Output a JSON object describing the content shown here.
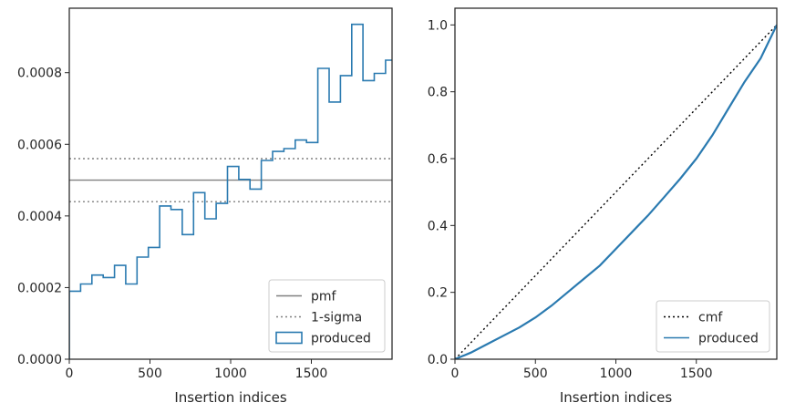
{
  "chart_data": [
    {
      "type": "line",
      "xlabel": "Insertion indices",
      "ylabel": "",
      "xlim": [
        0,
        2000
      ],
      "ylim": [
        0,
        0.00098
      ],
      "xticks": [
        "0",
        "500",
        "1000",
        "1500"
      ],
      "yticks": [
        "0.0000",
        "0.0002",
        "0.0004",
        "0.0006",
        "0.0008"
      ],
      "xtick_values": [
        0,
        500,
        1000,
        1500
      ],
      "ytick_values": [
        0,
        0.0002,
        0.0004,
        0.0006,
        0.0008
      ],
      "legend_position": "lower-right",
      "series": [
        {
          "name": "pmf",
          "style": "solid",
          "color": "#808080",
          "y": 0.0005
        },
        {
          "name": "1-sigma",
          "style": "dotted",
          "color": "#808080",
          "y": [
            0.00044,
            0.00056
          ]
        },
        {
          "name": "produced",
          "style": "step",
          "color": "#2a7ab0",
          "bin_edges": [
            0,
            70,
            140,
            210,
            280,
            350,
            420,
            490,
            560,
            630,
            700,
            770,
            840,
            910,
            980,
            1050,
            1120,
            1190,
            1260,
            1330,
            1400,
            1470,
            1540,
            1610,
            1680,
            1750,
            1820,
            1890,
            1960,
            2000
          ],
          "values": [
            0.00019,
            0.00021,
            0.000235,
            0.000228,
            0.000262,
            0.00021,
            0.000285,
            0.000312,
            0.000428,
            0.000418,
            0.000348,
            0.000465,
            0.000392,
            0.000435,
            0.000538,
            0.000502,
            0.000475,
            0.000555,
            0.00058,
            0.000588,
            0.000612,
            0.000605,
            0.000812,
            0.000718,
            0.000792,
            0.000935,
            0.000778,
            0.000798,
            0.000835
          ]
        }
      ]
    },
    {
      "type": "line",
      "xlabel": "Insertion indices",
      "ylabel": "",
      "xlim": [
        0,
        2000
      ],
      "ylim": [
        0,
        1.05
      ],
      "xticks": [
        "0",
        "500",
        "1000",
        "1500"
      ],
      "yticks": [
        "0.0",
        "0.2",
        "0.4",
        "0.6",
        "0.8",
        "1.0"
      ],
      "xtick_values": [
        0,
        500,
        1000,
        1500
      ],
      "ytick_values": [
        0,
        0.2,
        0.4,
        0.6,
        0.8,
        1.0
      ],
      "legend_position": "lower-right",
      "series": [
        {
          "name": "cmf",
          "style": "dotted",
          "color": "#000000",
          "x": [
            0,
            2000
          ],
          "y": [
            0,
            1.0
          ]
        },
        {
          "name": "produced",
          "style": "solid",
          "color": "#2a7ab0",
          "x": [
            0,
            100,
            200,
            300,
            400,
            500,
            600,
            700,
            800,
            900,
            1000,
            1100,
            1200,
            1300,
            1400,
            1500,
            1600,
            1700,
            1800,
            1900,
            2000
          ],
          "y": [
            0,
            0.02,
            0.045,
            0.07,
            0.095,
            0.125,
            0.16,
            0.2,
            0.24,
            0.28,
            0.33,
            0.38,
            0.43,
            0.485,
            0.54,
            0.6,
            0.67,
            0.75,
            0.83,
            0.9,
            1.0
          ]
        }
      ]
    }
  ]
}
